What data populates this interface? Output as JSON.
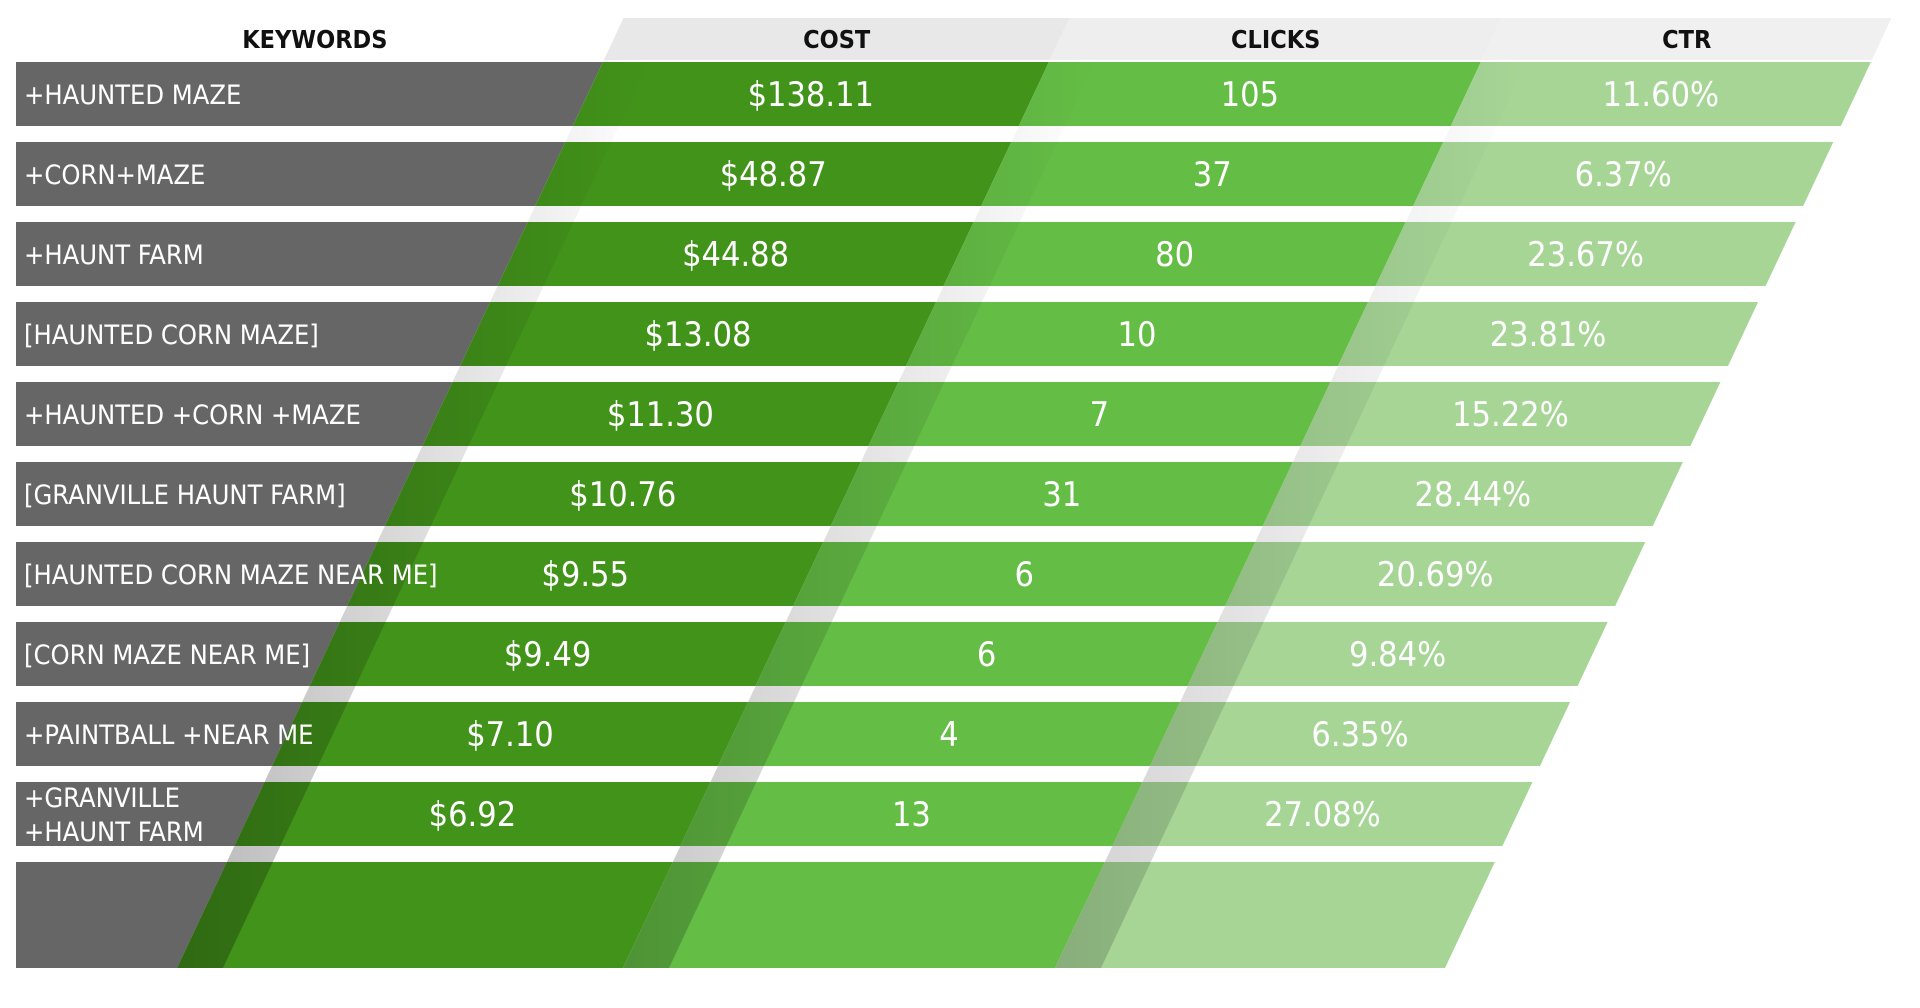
{
  "chart_data": {
    "type": "table",
    "columns": [
      {
        "key": "keyword",
        "label": "KEYWORDS",
        "color": "#666666",
        "header_color": "#ffffff"
      },
      {
        "key": "cost",
        "label": "COST",
        "color": "#42931a",
        "header_color": "#e8e8e8"
      },
      {
        "key": "clicks",
        "label": "CLICKS",
        "color": "#64bd45",
        "header_color": "#eeeeee"
      },
      {
        "key": "ctr",
        "label": "CTR",
        "color": "#a6d596",
        "header_color": "#f0f0f0"
      }
    ],
    "rows": [
      {
        "keyword": [
          "+HAUNTED MAZE"
        ],
        "cost": "$138.11",
        "clicks": "105",
        "ctr": "11.60%"
      },
      {
        "keyword": [
          "+CORN+MAZE"
        ],
        "cost": "$48.87",
        "clicks": "37",
        "ctr": "6.37%"
      },
      {
        "keyword": [
          "+HAUNT FARM"
        ],
        "cost": "$44.88",
        "clicks": "80",
        "ctr": "23.67%"
      },
      {
        "keyword": [
          "[HAUNTED CORN MAZE]"
        ],
        "cost": "$13.08",
        "clicks": "10",
        "ctr": "23.81%"
      },
      {
        "keyword": [
          "+HAUNTED +CORN +MAZE"
        ],
        "cost": "$11.30",
        "clicks": "7",
        "ctr": "15.22%"
      },
      {
        "keyword": [
          " [GRANVILLE HAUNT FARM]"
        ],
        "cost": "$10.76",
        "clicks": "31",
        "ctr": "28.44%"
      },
      {
        "keyword": [
          "[HAUNTED CORN MAZE NEAR ME]"
        ],
        "cost": "$9.55",
        "clicks": "6",
        "ctr": "20.69%"
      },
      {
        "keyword": [
          "[CORN MAZE NEAR ME]"
        ],
        "cost": "$9.49",
        "clicks": "6",
        "ctr": "9.84%"
      },
      {
        "keyword": [
          "+PAINTBALL +NEAR ME"
        ],
        "cost": "$7.10",
        "clicks": "4",
        "ctr": "6.35%"
      },
      {
        "keyword": [
          "+GRANVILLE",
          "+HAUNT FARM"
        ],
        "cost": "$6.92",
        "clicks": "13",
        "ctr": "27.08%"
      }
    ],
    "trailing_empty_row": true
  }
}
